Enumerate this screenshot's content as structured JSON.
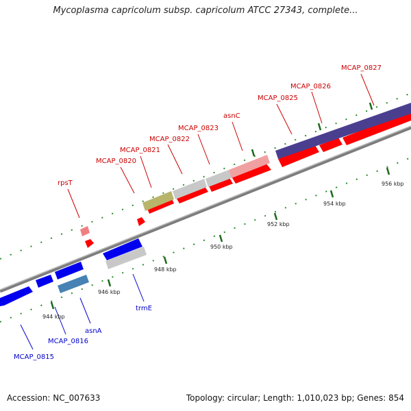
{
  "title": "Mycoplasma capricolum subsp. capricolum ATCC 27343, complete...",
  "footer": {
    "accession": "Accession: NC_007633",
    "stats": "Topology: circular; Length: 1,010,023 bp; Genes: 854"
  },
  "colors": {
    "forward_gene": "#ff0000",
    "reverse_gene": "#0000ee",
    "forward_label": "#cc0000",
    "reverse_label": "#0000cc",
    "tick": "#2a8a2a",
    "backbone": "#888888"
  },
  "ticks": {
    "outer": [
      "956 kbp"
    ],
    "inner": [
      "944 kbp",
      "946 kbp",
      "948 kbp",
      "950 kbp",
      "952 kbp",
      "954 kbp"
    ]
  },
  "genes_forward_labels": [
    "rpsT",
    "MCAP_0820",
    "MCAP_0821",
    "MCAP_0822",
    "MCAP_0823",
    "asnC",
    "MCAP_0825",
    "MCAP_0826",
    "MCAP_0827"
  ],
  "genes_reverse_labels": [
    "MCAP_0815",
    "MCAP_0816",
    "asnA",
    "trmE"
  ]
}
